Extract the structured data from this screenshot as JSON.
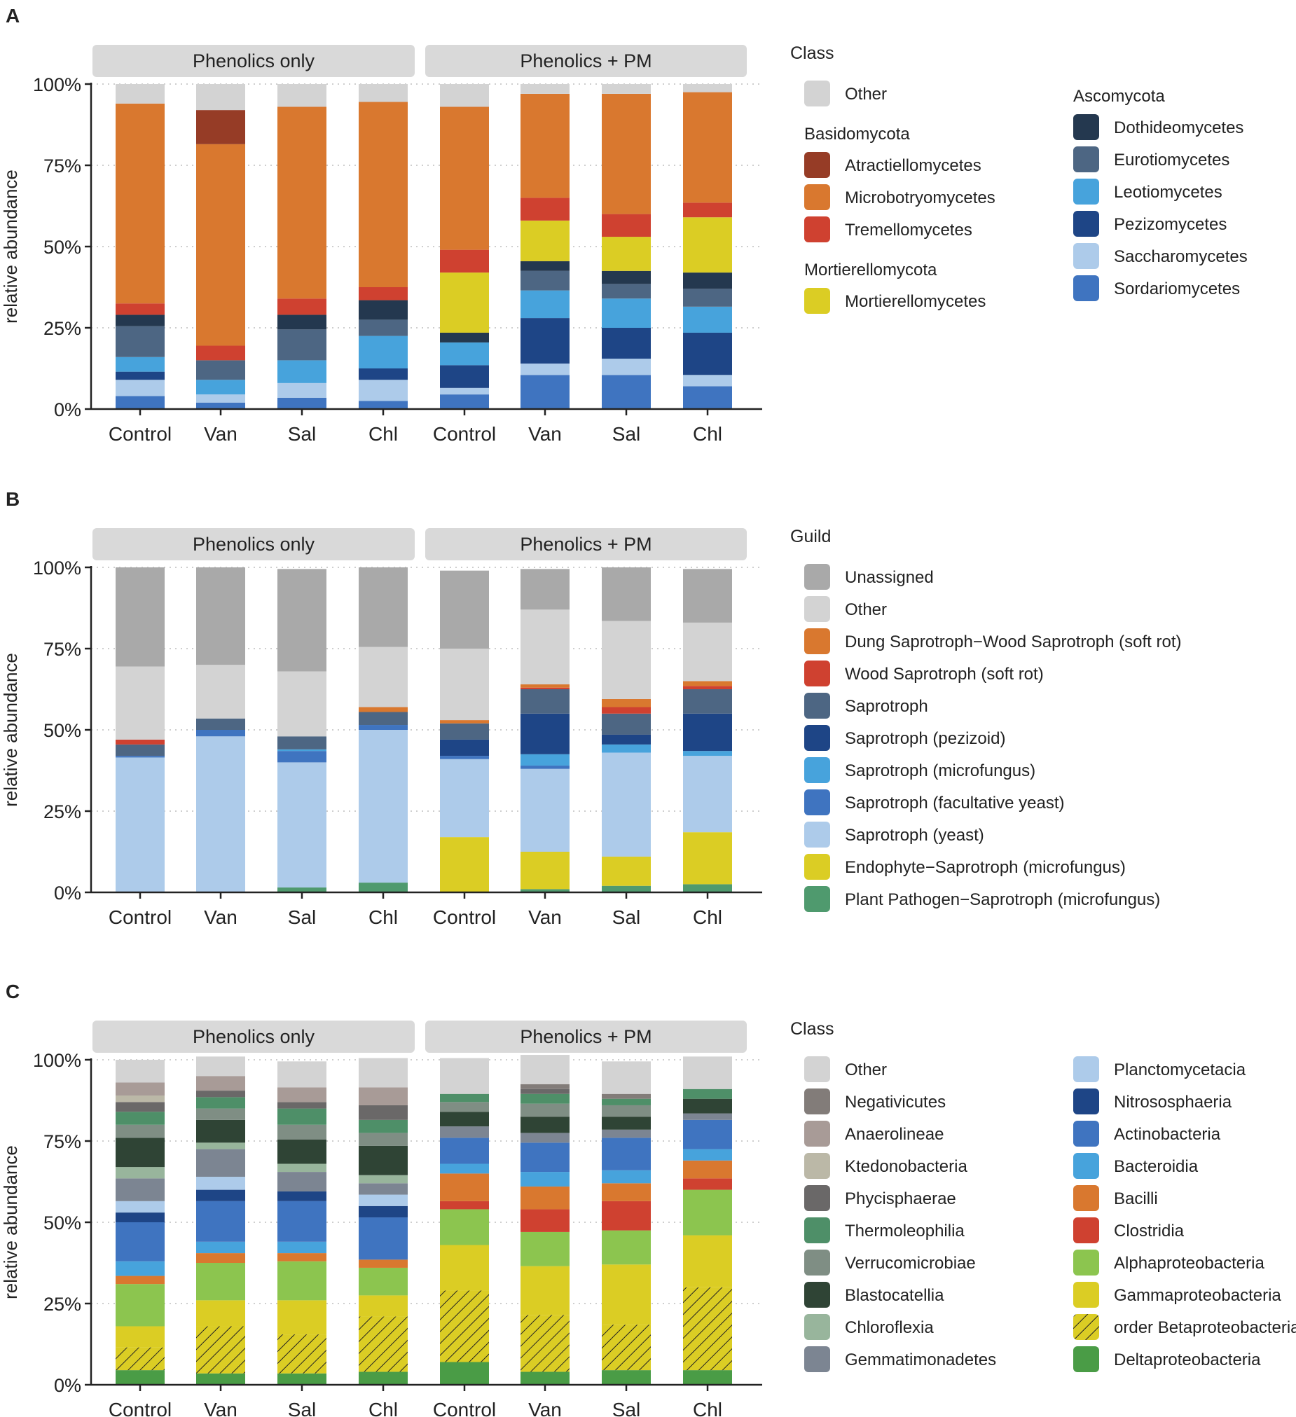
{
  "palette": {
    "other": "#d3d3d3",
    "unassigned": "#a9a9a9",
    "strip": "#d9d9d9",
    "grid": "#bdbdbd",
    "axis": "#222222",
    "atract": "#963c26",
    "microbo": "#d9782f",
    "tremello": "#cf4130",
    "mortie": "#dbcd24",
    "dothideo": "#24384f",
    "euroti": "#4d6683",
    "leotio": "#47a3dc",
    "pezizo": "#1e4586",
    "saccharo": "#adcbea",
    "sordario": "#3f74c0",
    "dung": "#d9782f",
    "woodsap": "#cf4130",
    "sapro": "#4d6683",
    "sapropez": "#1e4586",
    "sapromicro": "#47a3dc",
    "saprofac": "#3f74c0",
    "saproyeast": "#adcbea",
    "endo": "#dbcd24",
    "plantpath": "#4f9a6e",
    "negativ": "#827c79",
    "anaero": "#a89b97",
    "ktedono": "#bbb8a7",
    "phycis": "#6a6868",
    "thermo": "#4e8f68",
    "verruco": "#7f8e84",
    "blasto": "#2f4435",
    "chloro": "#98b59c",
    "gemmati": "#7c8592",
    "plancto": "#adcbea",
    "nitroso": "#1e4586",
    "actino": "#3f74c0",
    "bactero": "#47a3dc",
    "bacilli": "#d9782f",
    "clostri": "#cf4130",
    "alpha": "#8cc54f",
    "gamma": "#dbcd24",
    "delta": "#4a9c46"
  },
  "groups": [
    "Phenolics only",
    "Phenolics + PM"
  ],
  "categories": [
    "Control",
    "Van",
    "Sal",
    "Chl",
    "Control",
    "Van",
    "Sal",
    "Chl"
  ],
  "yticks": [
    "0%",
    "25%",
    "50%",
    "75%",
    "100%"
  ],
  "ylabel": "relative abundance",
  "chart_data": [
    {
      "panel": "A",
      "type": "bar",
      "stacked": true,
      "ylabel": "relative abundance",
      "ylim": [
        0,
        100
      ],
      "facets": [
        "Phenolics only",
        "Phenolics + PM"
      ],
      "categories": [
        "Control",
        "Van",
        "Sal",
        "Chl",
        "Control",
        "Van",
        "Sal",
        "Chl"
      ],
      "series": [
        {
          "name": "Sordariomycetes",
          "key": "sordario",
          "values": [
            4,
            2,
            3.5,
            2.5,
            4.5,
            10.5,
            10.5,
            7
          ]
        },
        {
          "name": "Saccharomycetes",
          "key": "saccharo",
          "values": [
            5,
            2.5,
            4.5,
            6.5,
            2,
            3.5,
            5,
            3.5
          ]
        },
        {
          "name": "Pezizomycetes",
          "key": "pezizo",
          "values": [
            2.5,
            0,
            0,
            3.5,
            7,
            14,
            9.5,
            13
          ]
        },
        {
          "name": "Leotiomycetes",
          "key": "leotio",
          "values": [
            4.5,
            4.5,
            7,
            10,
            7,
            8.5,
            9,
            8
          ]
        },
        {
          "name": "Eurotiomycetes",
          "key": "euroti",
          "values": [
            9.5,
            6,
            9.5,
            5,
            0,
            6,
            4.5,
            5.5
          ]
        },
        {
          "name": "Dothideomycetes",
          "key": "dothideo",
          "values": [
            3.5,
            0,
            4.5,
            6,
            3,
            3,
            4,
            5
          ]
        },
        {
          "name": "Mortierellomycetes",
          "key": "mortie",
          "values": [
            0,
            0,
            0,
            0,
            18.5,
            12.5,
            10.5,
            17
          ]
        },
        {
          "name": "Tremellomycetes",
          "key": "tremello",
          "values": [
            3.5,
            4.5,
            5,
            4,
            7,
            7,
            7,
            4.5
          ]
        },
        {
          "name": "Microbotryomycetes",
          "key": "microbo",
          "values": [
            61.5,
            62,
            59,
            57,
            44,
            32,
            37,
            34
          ]
        },
        {
          "name": "Atractiellomycetes",
          "key": "atract",
          "values": [
            0,
            10.5,
            0,
            0,
            0,
            0,
            0,
            0
          ]
        },
        {
          "name": "Other",
          "key": "other",
          "values": [
            6,
            8,
            7,
            5.5,
            7,
            3,
            3,
            2.5
          ]
        }
      ],
      "legend": {
        "title": "Class",
        "columns": [
          [
            {
              "type": "item",
              "label": "Other",
              "key": "other"
            },
            {
              "type": "heading",
              "label": "Basidomycota"
            },
            {
              "type": "item",
              "label": "Atractiellomycetes",
              "key": "atract"
            },
            {
              "type": "item",
              "label": "Microbotryomycetes",
              "key": "microbo"
            },
            {
              "type": "item",
              "label": "Tremellomycetes",
              "key": "tremello"
            },
            {
              "type": "heading",
              "label": "Mortierellomycota"
            },
            {
              "type": "item",
              "label": "Mortierellomycetes",
              "key": "mortie"
            }
          ],
          [
            {
              "type": "heading",
              "label": "Ascomycota"
            },
            {
              "type": "item",
              "label": "Dothideomycetes",
              "key": "dothideo"
            },
            {
              "type": "item",
              "label": "Eurotiomycetes",
              "key": "euroti"
            },
            {
              "type": "item",
              "label": "Leotiomycetes",
              "key": "leotio"
            },
            {
              "type": "item",
              "label": "Pezizomycetes",
              "key": "pezizo"
            },
            {
              "type": "item",
              "label": "Saccharomycetes",
              "key": "saccharo"
            },
            {
              "type": "item",
              "label": "Sordariomycetes",
              "key": "sordario"
            }
          ]
        ]
      }
    },
    {
      "panel": "B",
      "type": "bar",
      "stacked": true,
      "ylabel": "relative abundance",
      "ylim": [
        0,
        100
      ],
      "facets": [
        "Phenolics only",
        "Phenolics + PM"
      ],
      "categories": [
        "Control",
        "Van",
        "Sal",
        "Chl",
        "Control",
        "Van",
        "Sal",
        "Chl"
      ],
      "series": [
        {
          "name": "Plant Pathogen-Saprotroph (microfungus)",
          "key": "plantpath",
          "values": [
            0,
            0,
            1.5,
            3,
            0,
            1,
            2,
            2.5
          ]
        },
        {
          "name": "Endophyte-Saprotroph (microfungus)",
          "key": "endo",
          "values": [
            0,
            0,
            0,
            0,
            17,
            11.5,
            9,
            16
          ]
        },
        {
          "name": "Saprotroph (yeast)",
          "key": "saproyeast",
          "values": [
            41.5,
            48,
            38.5,
            47,
            24,
            25.5,
            32,
            23.5
          ]
        },
        {
          "name": "Saprotroph (facultative yeast)",
          "key": "saprofac",
          "values": [
            0.5,
            2,
            3.5,
            1.5,
            1,
            1,
            0,
            0
          ]
        },
        {
          "name": "Saprotroph (microfungus)",
          "key": "sapromicro",
          "values": [
            0,
            0,
            0.5,
            0,
            0,
            3.5,
            2.5,
            1.5
          ]
        },
        {
          "name": "Saprotroph (pezizoid)",
          "key": "sapropez",
          "values": [
            0,
            0,
            0,
            0,
            5,
            12.5,
            3,
            11.5
          ]
        },
        {
          "name": "Saprotroph",
          "key": "sapro",
          "values": [
            3.5,
            3.5,
            4,
            4,
            5,
            7.5,
            6.5,
            7.5
          ]
        },
        {
          "name": "Wood Saprotroph (soft rot)",
          "key": "woodsap",
          "values": [
            1.5,
            0,
            0,
            0,
            0,
            0.5,
            2,
            1
          ]
        },
        {
          "name": "Dung Saprotroph-Wood Saprotroph (soft rot)",
          "key": "dung",
          "values": [
            0,
            0,
            0,
            1.5,
            1,
            1,
            2.5,
            1.5
          ]
        },
        {
          "name": "Other",
          "key": "other",
          "values": [
            22.5,
            16.5,
            20,
            18.5,
            22,
            23,
            24,
            18
          ]
        },
        {
          "name": "Unassigned",
          "key": "unassigned",
          "values": [
            30.5,
            30,
            31.5,
            24.5,
            24,
            12.5,
            16.5,
            16.5
          ]
        }
      ],
      "legend": {
        "title": "Guild",
        "columns": [
          [
            {
              "type": "item",
              "label": "Unassigned",
              "key": "unassigned"
            },
            {
              "type": "item",
              "label": "Other",
              "key": "other"
            },
            {
              "type": "item",
              "label": "Dung Saprotroph−Wood Saprotroph (soft rot)",
              "key": "dung"
            },
            {
              "type": "item",
              "label": "Wood Saprotroph (soft rot)",
              "key": "woodsap"
            },
            {
              "type": "item",
              "label": "Saprotroph",
              "key": "sapro"
            },
            {
              "type": "item",
              "label": "Saprotroph (pezizoid)",
              "key": "sapropez"
            },
            {
              "type": "item",
              "label": "Saprotroph (microfungus)",
              "key": "sapromicro"
            },
            {
              "type": "item",
              "label": "Saprotroph (facultative yeast)",
              "key": "saprofac"
            },
            {
              "type": "item",
              "label": "Saprotroph (yeast)",
              "key": "saproyeast"
            },
            {
              "type": "item",
              "label": "Endophyte−Saprotroph (microfungus)",
              "key": "endo"
            },
            {
              "type": "item",
              "label": "Plant Pathogen−Saprotroph (microfungus)",
              "key": "plantpath"
            }
          ]
        ]
      }
    },
    {
      "panel": "C",
      "type": "bar",
      "stacked": true,
      "ylabel": "relative abundance",
      "ylim": [
        0,
        100
      ],
      "facets": [
        "Phenolics only",
        "Phenolics + PM"
      ],
      "categories": [
        "Control",
        "Van",
        "Sal",
        "Chl",
        "Control",
        "Van",
        "Sal",
        "Chl"
      ],
      "series": [
        {
          "name": "Deltaproteobacteria",
          "key": "delta",
          "values": [
            4.5,
            3.5,
            3.5,
            4,
            7,
            4,
            4.5,
            4.5
          ]
        },
        {
          "name": "order Betaproteobacteriales",
          "key": "gamma",
          "hatched": true,
          "values": [
            7,
            14.5,
            12,
            17,
            22,
            17.5,
            14,
            25.5
          ]
        },
        {
          "name": "Gammaproteobacteria",
          "key": "gamma",
          "values": [
            6.5,
            8,
            10.5,
            6.5,
            14,
            15,
            18.5,
            16
          ]
        },
        {
          "name": "Alphaproteobacteria",
          "key": "alpha",
          "values": [
            13,
            11.5,
            12,
            8.5,
            11,
            10.5,
            10.5,
            14
          ]
        },
        {
          "name": "Clostridia",
          "key": "clostri",
          "values": [
            0,
            0,
            0,
            0,
            2.5,
            7,
            9,
            3.5
          ]
        },
        {
          "name": "Bacilli",
          "key": "bacilli",
          "values": [
            2.5,
            3,
            2.5,
            2.5,
            8.5,
            7,
            5.5,
            5.5
          ]
        },
        {
          "name": "Bacteroidia",
          "key": "bactero",
          "values": [
            4.5,
            3.5,
            3.5,
            0,
            3,
            4.5,
            4,
            3.5
          ]
        },
        {
          "name": "Actinobacteria",
          "key": "actino",
          "values": [
            12,
            12.5,
            12.5,
            13,
            8,
            9,
            10,
            9
          ]
        },
        {
          "name": "Nitrososphaeria",
          "key": "nitroso",
          "values": [
            3,
            3.5,
            3,
            3.5,
            0,
            0,
            0,
            0
          ]
        },
        {
          "name": "Planctomycetacia",
          "key": "plancto",
          "values": [
            3.5,
            4,
            0,
            3.5,
            0,
            0,
            0,
            0
          ]
        },
        {
          "name": "Gemmatimonadetes",
          "key": "gemmati",
          "values": [
            7,
            8.5,
            6,
            3.5,
            3.5,
            3,
            2.5,
            2
          ]
        },
        {
          "name": "Chloroflexia",
          "key": "chloro",
          "values": [
            3.5,
            2,
            2.5,
            2.5,
            0,
            0,
            0,
            0
          ]
        },
        {
          "name": "Blastocatellia",
          "key": "blasto",
          "values": [
            9,
            7,
            7.5,
            9,
            4.5,
            5,
            4,
            4.5
          ]
        },
        {
          "name": "Verrucomicrobiae",
          "key": "verruco",
          "values": [
            4,
            3.5,
            4.5,
            4,
            3,
            4,
            3.5,
            0
          ]
        },
        {
          "name": "Thermoleophilia",
          "key": "thermo",
          "values": [
            4,
            3.5,
            5,
            4,
            2.5,
            3,
            2,
            3
          ]
        },
        {
          "name": "Phycisphaerae",
          "key": "phycis",
          "values": [
            3,
            2,
            2,
            4.5,
            0,
            1.5,
            0,
            0
          ]
        },
        {
          "name": "Ktedonobacteria",
          "key": "ktedono",
          "values": [
            2,
            0,
            0,
            0,
            0,
            0,
            0,
            0
          ]
        },
        {
          "name": "Anaerolineae",
          "key": "anaero",
          "values": [
            4,
            4.5,
            4.5,
            5.5,
            0,
            0,
            0,
            0
          ]
        },
        {
          "name": "Negativicutes",
          "key": "negativ",
          "values": [
            0,
            0,
            0,
            0,
            0,
            1.5,
            1.5,
            0
          ]
        },
        {
          "name": "Other",
          "key": "other",
          "values": [
            7,
            6,
            8,
            9,
            11,
            9,
            10,
            10
          ]
        }
      ],
      "legend": {
        "title": "Class",
        "columns": [
          [
            {
              "type": "item",
              "label": "Other",
              "key": "other"
            },
            {
              "type": "item",
              "label": "Negativicutes",
              "key": "negativ"
            },
            {
              "type": "item",
              "label": "Anaerolineae",
              "key": "anaero"
            },
            {
              "type": "item",
              "label": "Ktedonobacteria",
              "key": "ktedono"
            },
            {
              "type": "item",
              "label": "Phycisphaerae",
              "key": "phycis"
            },
            {
              "type": "item",
              "label": "Thermoleophilia",
              "key": "thermo"
            },
            {
              "type": "item",
              "label": "Verrucomicrobiae",
              "key": "verruco"
            },
            {
              "type": "item",
              "label": "Blastocatellia",
              "key": "blasto"
            },
            {
              "type": "item",
              "label": "Chloroflexia",
              "key": "chloro"
            },
            {
              "type": "item",
              "label": "Gemmatimonadetes",
              "key": "gemmati"
            }
          ],
          [
            {
              "type": "item",
              "label": "Planctomycetacia",
              "key": "plancto"
            },
            {
              "type": "item",
              "label": "Nitrososphaeria",
              "key": "nitroso"
            },
            {
              "type": "item",
              "label": "Actinobacteria",
              "key": "actino"
            },
            {
              "type": "item",
              "label": "Bacteroidia",
              "key": "bactero"
            },
            {
              "type": "item",
              "label": "Bacilli",
              "key": "bacilli"
            },
            {
              "type": "item",
              "label": "Clostridia",
              "key": "clostri"
            },
            {
              "type": "item",
              "label": "Alphaproteobacteria",
              "key": "alpha"
            },
            {
              "type": "item",
              "label": "Gammaproteobacteria",
              "key": "gamma"
            },
            {
              "type": "item",
              "label": "order Betaproteobacteriales",
              "key": "gamma",
              "hatched": true
            },
            {
              "type": "item",
              "label": "Deltaproteobacteria",
              "key": "delta"
            }
          ]
        ]
      }
    }
  ]
}
